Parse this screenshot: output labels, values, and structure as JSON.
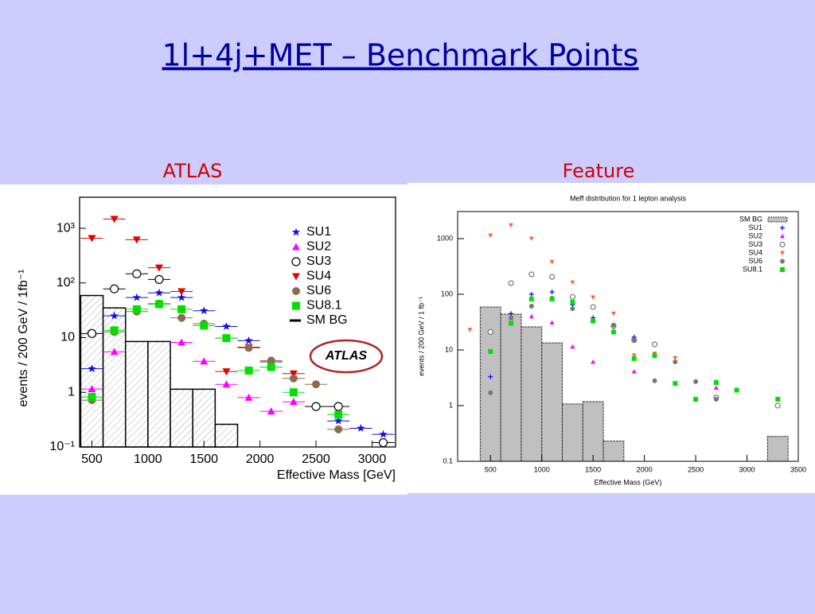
{
  "slide_title": "1l+4j+MET – Benchmark Points",
  "chart_data": [
    {
      "type": "scatter",
      "caption": "ATLAS",
      "annotation": "ATLAS",
      "xlabel": "Effective Mass [GeV]",
      "ylabel": "events / 200 GeV / 1fb⁻¹",
      "log_y": true,
      "legend": "upper right",
      "xlim": [
        390,
        3210
      ],
      "ylim": [
        0.1,
        3700
      ],
      "xticks": [
        500,
        1000,
        1500,
        2000,
        2500,
        3000
      ],
      "yticks": [
        {
          "value": 0.1,
          "label": "10⁻¹"
        },
        1,
        10,
        {
          "value": 100,
          "label": "10²"
        },
        {
          "value": 1000,
          "label": "10³"
        }
      ],
      "x": [
        500,
        700,
        900,
        1100,
        1300,
        1500,
        1700,
        1900,
        2100,
        2300,
        2500,
        2700,
        2900,
        3100
      ],
      "series": [
        {
          "name": "SU1",
          "color": "#1010e0",
          "marker": "star",
          "values": [
            2.7,
            25,
            54,
            66,
            54,
            31,
            16,
            8.8,
            3.6,
            null,
            null,
            0.3,
            0.22,
            0.17
          ]
        },
        {
          "name": "SU2",
          "color": "#ff00ff",
          "marker": "triangle",
          "values": [
            1.15,
            5.5,
            null,
            null,
            8.2,
            3.7,
            1.4,
            0.8,
            0.45,
            0.67,
            null,
            null,
            null,
            null
          ]
        },
        {
          "name": "SU3",
          "color": "#000000",
          "marker": "open-circle",
          "values": [
            11.9,
            78,
            147,
            116,
            null,
            null,
            null,
            null,
            null,
            null,
            0.55,
            0.55,
            null,
            0.12
          ]
        },
        {
          "name": "SU4",
          "color": "#e00000",
          "marker": "triangle-down",
          "values": [
            660,
            1480,
            620,
            190,
            70,
            null,
            2.4,
            6.7,
            null,
            2.2,
            null,
            null,
            null,
            null
          ]
        },
        {
          "name": "SU6",
          "color": "#8b6b50",
          "marker": "circle",
          "values": [
            0.72,
            12.7,
            30,
            42,
            23,
            18,
            9.8,
            6.5,
            3.8,
            1.8,
            1.4,
            0.21,
            null,
            null
          ]
        },
        {
          "name": "SU8.1",
          "color": "#00e000",
          "marker": "square",
          "values": [
            0.82,
            13.6,
            33,
            41,
            33,
            16.6,
            9.8,
            2.5,
            2.9,
            1.0,
            null,
            0.39,
            null,
            null
          ]
        }
      ],
      "histogram": {
        "name": "SM BG",
        "color": "#000000",
        "bins": [
          400,
          600,
          800,
          1000,
          1200,
          1400,
          1600,
          1800
        ],
        "counts": [
          59,
          35,
          8.5,
          8.5,
          1.14,
          1.14,
          0.26
        ]
      }
    },
    {
      "type": "scatter",
      "caption": "Feature",
      "title": "Meff distribution for 1 lepton analysis",
      "xlabel": "Effective Mass (GeV)",
      "ylabel": "events / 200 GeV / 1 fb⁻¹",
      "log_y": true,
      "legend": "upper right",
      "xlim": [
        180,
        3500
      ],
      "ylim": [
        0.1,
        3060
      ],
      "xticks": [
        500,
        1000,
        1500,
        2000,
        2500,
        3000,
        3500
      ],
      "yticks": [
        0.1,
        1,
        10,
        100,
        1000
      ],
      "x": [
        300,
        500,
        700,
        900,
        1100,
        1300,
        1500,
        1700,
        1900,
        2100,
        2300,
        2500,
        2700,
        2900,
        3100,
        3300
      ],
      "histogram": {
        "name": "SM BG",
        "color": "#c0c0c0",
        "bins": [
          400,
          600,
          800,
          1000,
          1200,
          1400,
          1600,
          1800,
          2000,
          2200,
          2400,
          2600,
          2800,
          3000,
          3200,
          3400
        ],
        "counts": [
          59,
          44,
          26,
          13.4,
          1.07,
          1.18,
          0.23,
          null,
          null,
          null,
          null,
          null,
          null,
          null,
          0.28
        ]
      },
      "series": [
        {
          "name": "SU1",
          "color": "#0000ff",
          "marker": "plus",
          "values": [
            null,
            3.3,
            45,
            100,
            110,
            65,
            38,
            26,
            17,
            8.5,
            null,
            null,
            null,
            null,
            null,
            null
          ]
        },
        {
          "name": "SU2",
          "color": "#ff00ff",
          "marker": "triangle",
          "values": [
            null,
            null,
            37,
            40,
            31,
            11.4,
            6.1,
            null,
            4.1,
            null,
            null,
            null,
            2.1,
            null,
            null,
            null
          ]
        },
        {
          "name": "SU3",
          "color": "#777777",
          "marker": "open-circle",
          "values": [
            null,
            21,
            158,
            228,
            206,
            90,
            59,
            27,
            15,
            12.6,
            null,
            null,
            1.4,
            null,
            null,
            1.0
          ]
        },
        {
          "name": "SU4",
          "color": "#ff6030",
          "marker": "triangle-down",
          "values": [
            23,
            1140,
            1740,
            1000,
            380,
            163,
            88,
            45,
            8,
            8.5,
            7.2,
            null,
            null,
            null,
            null,
            null
          ]
        },
        {
          "name": "SU6",
          "color": "#777777",
          "marker": "circle",
          "values": [
            null,
            1.7,
            38,
            61,
            85,
            55,
            34,
            28,
            15,
            2.8,
            6.1,
            2.7,
            1.3,
            null,
            null,
            null
          ]
        },
        {
          "name": "SU8.1",
          "color": "#00e000",
          "marker": "square",
          "values": [
            null,
            9.4,
            30,
            82,
            82,
            72,
            33,
            21,
            7,
            7.9,
            2.5,
            1.3,
            2.6,
            1.9,
            null,
            1.3
          ]
        }
      ]
    }
  ]
}
